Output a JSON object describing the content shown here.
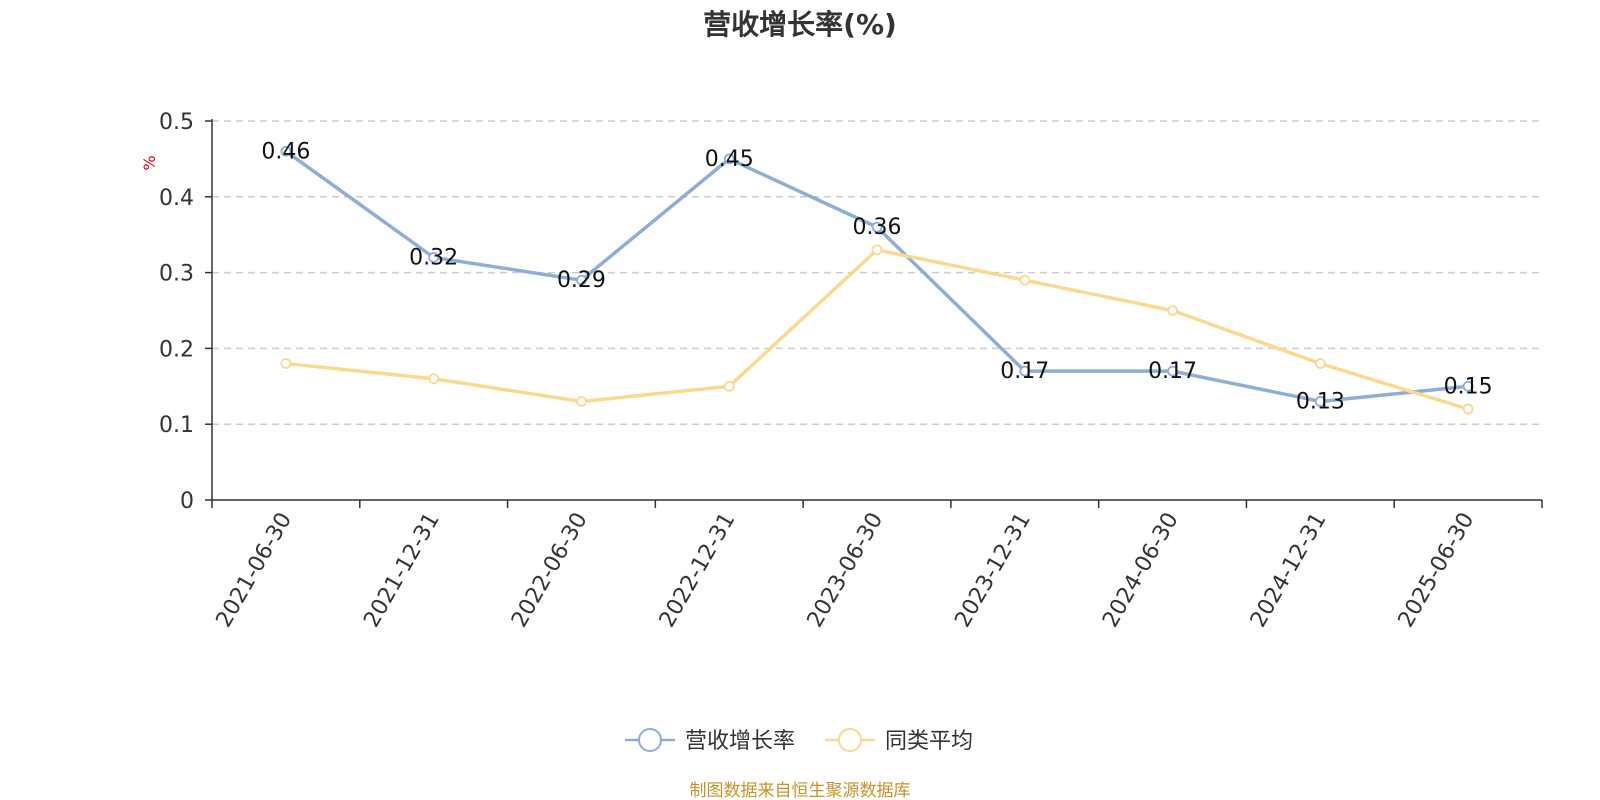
{
  "chart_data": {
    "type": "line",
    "title": "营收增长率(%)",
    "ylabel": "%",
    "xlabel": "",
    "categories": [
      "2021-06-30",
      "2021-12-31",
      "2022-06-30",
      "2022-12-31",
      "2023-06-30",
      "2023-12-31",
      "2024-06-30",
      "2024-12-31",
      "2025-06-30"
    ],
    "ylim": [
      0,
      0.5
    ],
    "yticks": [
      "0",
      "0.1",
      "0.2",
      "0.3",
      "0.4",
      "0.5"
    ],
    "grid": true,
    "legend_position": "bottom-center",
    "series": [
      {
        "name": "营收增长率",
        "color": "#8eaed8",
        "values": [
          0.46,
          0.32,
          0.29,
          0.45,
          0.36,
          0.17,
          0.17,
          0.13,
          0.15
        ],
        "labels": [
          "0.46",
          "0.32",
          "0.29",
          "0.45",
          "0.36",
          "0.17",
          "0.17",
          "0.13",
          "0.15"
        ]
      },
      {
        "name": "同类平均",
        "color": "#fbd98f",
        "values": [
          0.18,
          0.16,
          0.13,
          0.15,
          0.33,
          0.29,
          0.25,
          0.18,
          0.12
        ]
      }
    ]
  },
  "source_note": "制图数据来自恒生聚源数据库"
}
